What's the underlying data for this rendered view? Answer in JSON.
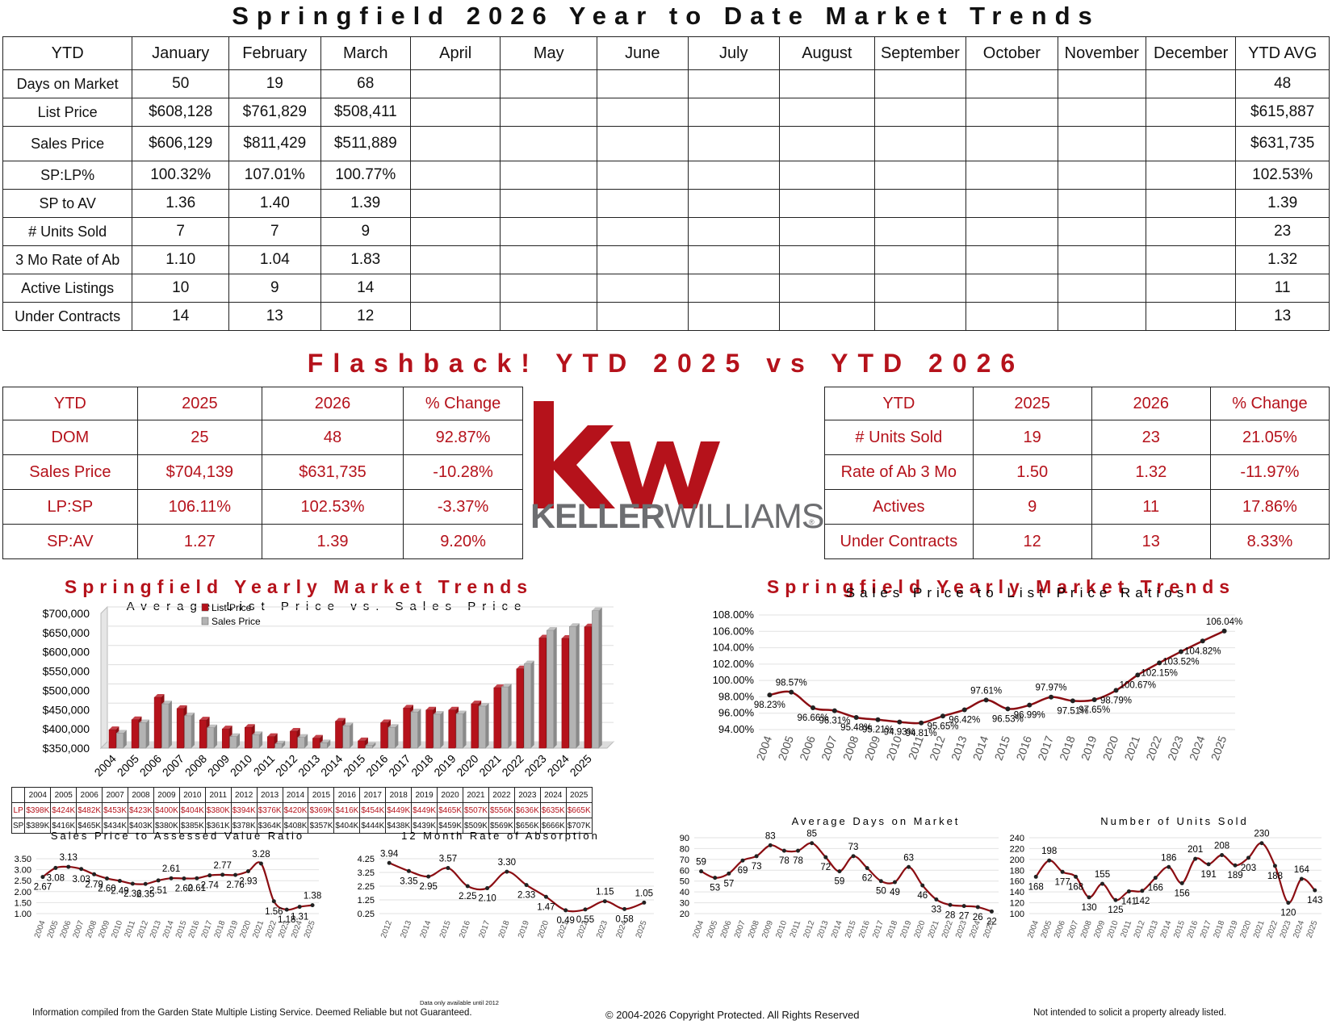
{
  "main_title": "Springfield 2026 Year to Date Market Trends",
  "ytd_table": {
    "headers": [
      "YTD",
      "January",
      "February",
      "March",
      "April",
      "May",
      "June",
      "July",
      "August",
      "September",
      "October",
      "November",
      "December",
      "YTD AVG"
    ],
    "rows": [
      {
        "label": "Days on Market",
        "values": [
          "50",
          "19",
          "68",
          "",
          "",
          "",
          "",
          "",
          "",
          "",
          "",
          ""
        ],
        "avg": "48"
      },
      {
        "label": "List Price",
        "values": [
          "$608,128",
          "$761,829",
          "$508,411",
          "",
          "",
          "",
          "",
          "",
          "",
          "",
          "",
          ""
        ],
        "avg": "$615,887"
      },
      {
        "label": "Sales Price",
        "values": [
          "$606,129",
          "$811,429",
          "$511,889",
          "",
          "",
          "",
          "",
          "",
          "",
          "",
          "",
          ""
        ],
        "avg": "$631,735"
      },
      {
        "label": "SP:LP%",
        "values": [
          "100.32%",
          "107.01%",
          "100.77%",
          "",
          "",
          "",
          "",
          "",
          "",
          "",
          "",
          ""
        ],
        "avg": "102.53%"
      },
      {
        "label": "SP to AV",
        "values": [
          "1.36",
          "1.40",
          "1.39",
          "",
          "",
          "",
          "",
          "",
          "",
          "",
          "",
          ""
        ],
        "avg": "1.39"
      },
      {
        "label": "# Units Sold",
        "values": [
          "7",
          "7",
          "9",
          "",
          "",
          "",
          "",
          "",
          "",
          "",
          "",
          ""
        ],
        "avg": "23"
      },
      {
        "label": "3 Mo Rate of Ab",
        "values": [
          "1.10",
          "1.04",
          "1.83",
          "",
          "",
          "",
          "",
          "",
          "",
          "",
          "",
          ""
        ],
        "avg": "1.32"
      },
      {
        "label": "Active Listings",
        "values": [
          "10",
          "9",
          "14",
          "",
          "",
          "",
          "",
          "",
          "",
          "",
          "",
          ""
        ],
        "avg": "11"
      },
      {
        "label": "Under Contracts",
        "values": [
          "14",
          "13",
          "12",
          "",
          "",
          "",
          "",
          "",
          "",
          "",
          "",
          ""
        ],
        "avg": "13"
      }
    ]
  },
  "flashback_title": "Flashback!   YTD 2025 vs YTD 2026",
  "compare_left": {
    "headers": [
      "YTD",
      "2025",
      "2026",
      "% Change"
    ],
    "rows": [
      [
        "DOM",
        "25",
        "48",
        "92.87%"
      ],
      [
        "Sales Price",
        "$704,139",
        "$631,735",
        "-10.28%"
      ],
      [
        "LP:SP",
        "106.11%",
        "102.53%",
        "-3.37%"
      ],
      [
        "SP:AV",
        "1.27",
        "1.39",
        "9.20%"
      ]
    ]
  },
  "compare_right": {
    "headers": [
      "YTD",
      "2025",
      "2026",
      "% Change"
    ],
    "rows": [
      [
        "# Units Sold",
        "19",
        "23",
        "21.05%"
      ],
      [
        "Rate of Ab 3 Mo",
        "1.50",
        "1.32",
        "-11.97%"
      ],
      [
        "Actives",
        "9",
        "11",
        "17.86%"
      ],
      [
        "Under Contracts",
        "12",
        "13",
        "8.33%"
      ]
    ]
  },
  "logo": {
    "mark": "kw",
    "wordmark_bold": "KELLER",
    "wordmark_light": "WILLIAMS",
    "registered": "®",
    "color": "#b5121b",
    "gray": "#6d6e71"
  },
  "yearly_title": "Springfield Yearly Market Trends",
  "lpsp_table": {
    "years": [
      "2004",
      "2005",
      "2006",
      "2007",
      "2008",
      "2009",
      "2010",
      "2011",
      "2012",
      "2013",
      "2014",
      "2015",
      "2016",
      "2017",
      "2018",
      "2019",
      "2020",
      "2021",
      "2022",
      "2023",
      "2024",
      "2025"
    ],
    "lp_label": "LP",
    "sp_label": "SP",
    "lp": [
      "$398K",
      "$424K",
      "$482K",
      "$453K",
      "$423K",
      "$400K",
      "$404K",
      "$380K",
      "$394K",
      "$376K",
      "$420K",
      "$369K",
      "$416K",
      "$454K",
      "$449K",
      "$449K",
      "$465K",
      "$507K",
      "$556K",
      "$636K",
      "$635K",
      "$665K"
    ],
    "sp": [
      "$389K",
      "$416K",
      "$465K",
      "$434K",
      "$403K",
      "$380K",
      "$385K",
      "$361K",
      "$378K",
      "$364K",
      "$408K",
      "$357K",
      "$404K",
      "$444K",
      "$438K",
      "$439K",
      "$459K",
      "$509K",
      "$569K",
      "$656K",
      "$666K",
      "$707K"
    ]
  },
  "footer": {
    "left": "Information compiled from the Garden State Multiple Listing Service.  Deemed Reliable but not Guaranteed.",
    "center": "© 2004-2026 Copyright Protected.  All Rights Reserved",
    "right": "Not intended to solicit a property already listed.",
    "note": "Data only available until 2012"
  },
  "colors": {
    "red": "#b5121b",
    "dark_red": "#8b0d12",
    "gray_bar": "#b3b3b3"
  },
  "chart_data": [
    {
      "type": "bar",
      "title": "Average List Price vs. Sales Price",
      "categories": [
        "2004",
        "2005",
        "2006",
        "2007",
        "2008",
        "2009",
        "2010",
        "2011",
        "2012",
        "2013",
        "2014",
        "2015",
        "2016",
        "2017",
        "2018",
        "2019",
        "2020",
        "2021",
        "2022",
        "2023",
        "2024",
        "2025"
      ],
      "series": [
        {
          "name": "List Price",
          "values": [
            398,
            424,
            482,
            453,
            423,
            400,
            404,
            380,
            394,
            376,
            420,
            369,
            416,
            454,
            449,
            449,
            465,
            507,
            556,
            636,
            635,
            665
          ]
        },
        {
          "name": "Sales Price",
          "values": [
            389,
            416,
            465,
            434,
            403,
            380,
            385,
            361,
            378,
            364,
            408,
            357,
            404,
            444,
            438,
            439,
            459,
            509,
            569,
            656,
            666,
            707
          ]
        }
      ],
      "yticks": [
        "$350,000",
        "$400,000",
        "$450,000",
        "$500,000",
        "$550,000",
        "$600,000",
        "$650,000",
        "$700,000"
      ],
      "ylim": [
        350,
        700
      ],
      "legend": "top-left"
    },
    {
      "type": "line",
      "title": "Sales Price to List Price Ratios",
      "categories": [
        "2004",
        "2005",
        "2006",
        "2007",
        "2008",
        "2009",
        "2010",
        "2011",
        "2012",
        "2013",
        "2014",
        "2015",
        "2016",
        "2017",
        "2018",
        "2019",
        "2020",
        "2021",
        "2022",
        "2023",
        "2024",
        "2025"
      ],
      "values": [
        98.23,
        98.57,
        96.66,
        96.31,
        95.48,
        95.21,
        94.93,
        94.81,
        95.65,
        96.42,
        97.61,
        96.53,
        96.99,
        97.97,
        97.51,
        97.65,
        98.79,
        100.67,
        102.15,
        103.52,
        104.82,
        106.04
      ],
      "labels": [
        "98.23%",
        "98.57%",
        "96.66%",
        "96.31%",
        "95.48%",
        "95.21%",
        "94.93%",
        "94.81%",
        "95.65%",
        "96.42%",
        "97.61%",
        "96.53%",
        "96.99%",
        "97.97%",
        "97.51%",
        "97.65%",
        "98.79%",
        "100.67%",
        "102.15%",
        "103.52%",
        "104.82%",
        "106.04%"
      ],
      "yticks": [
        "94.00%",
        "96.00%",
        "98.00%",
        "100.00%",
        "102.00%",
        "104.00%",
        "106.00%",
        "108.00%"
      ],
      "ylim": [
        94,
        108
      ]
    },
    {
      "type": "line",
      "title": "Sales Price to Assessed Value Ratio",
      "categories": [
        "2004",
        "2005",
        "2006",
        "2007",
        "2008",
        "2009",
        "2010",
        "2011",
        "2012",
        "2013",
        "2014",
        "2015",
        "2016",
        "2017",
        "2018",
        "2019",
        "2020",
        "2021",
        "2022",
        "2023",
        "2024",
        "2025"
      ],
      "values": [
        2.67,
        3.08,
        3.13,
        3.03,
        2.79,
        2.6,
        2.49,
        2.36,
        2.35,
        2.51,
        2.61,
        2.6,
        2.61,
        2.74,
        2.77,
        2.76,
        2.93,
        3.28,
        1.56,
        1.18,
        1.31,
        1.38
      ],
      "labels": [
        "2.67",
        "3.08",
        "3.13",
        "3.03",
        "2.79",
        "2.60",
        "2.49",
        "2.36",
        "2.35",
        "2.51",
        "2.61",
        "2.60",
        "2.61",
        "2.74",
        "2.77",
        "2.76",
        "2.93",
        "3.28",
        "1.56",
        "1.18",
        "1.31",
        "1.38"
      ],
      "yticks": [
        "1.00",
        "1.50",
        "2.00",
        "2.50",
        "3.00",
        "3.50"
      ],
      "ylim": [
        1,
        3.5
      ]
    },
    {
      "type": "line",
      "title": "12 Month Rate of Absorption",
      "categories": [
        "2012",
        "2013",
        "2014",
        "2015",
        "2016",
        "2017",
        "2018",
        "2019",
        "2020",
        "2021",
        "2022",
        "2023",
        "2024",
        "2025"
      ],
      "values": [
        3.94,
        3.35,
        2.95,
        3.57,
        2.25,
        2.1,
        3.3,
        2.33,
        1.47,
        0.49,
        0.55,
        1.15,
        0.58,
        1.05
      ],
      "labels": [
        "3.94",
        "3.35",
        "2.95",
        "3.57",
        "2.25",
        "2.10",
        "3.30",
        "2.33",
        "1.47",
        "0.49",
        "0.55",
        "1.15",
        "0.58",
        "1.05"
      ],
      "yticks": [
        "0.25",
        "1.25",
        "2.25",
        "3.25",
        "4.25"
      ],
      "ylim": [
        0.25,
        4.25
      ]
    },
    {
      "type": "line",
      "title": "Average Days on Market",
      "categories": [
        "2004",
        "2005",
        "2006",
        "2007",
        "2008",
        "2009",
        "2010",
        "2011",
        "2012",
        "2013",
        "2014",
        "2015",
        "2016",
        "2017",
        "2018",
        "2019",
        "2020",
        "2021",
        "2022",
        "2023",
        "2024",
        "2025"
      ],
      "values": [
        59,
        53,
        57,
        69,
        73,
        83,
        78,
        78,
        85,
        72,
        59,
        73,
        62,
        50,
        49,
        63,
        46,
        33,
        28,
        27,
        26,
        22
      ],
      "labels": [
        "59",
        "53",
        "57",
        "69",
        "73",
        "83",
        "78",
        "78",
        "85",
        "72",
        "59",
        "73",
        "62",
        "50",
        "49",
        "63",
        "46",
        "33",
        "28",
        "27",
        "26",
        "22"
      ],
      "yticks": [
        "20",
        "30",
        "40",
        "50",
        "60",
        "70",
        "80",
        "90"
      ],
      "ylim": [
        20,
        90
      ]
    },
    {
      "type": "line",
      "title": "Number of Units Sold",
      "categories": [
        "2004",
        "2005",
        "2006",
        "2007",
        "2008",
        "2009",
        "2010",
        "2011",
        "2012",
        "2013",
        "2014",
        "2015",
        "2016",
        "2017",
        "2018",
        "2019",
        "2020",
        "2021",
        "2022",
        "2023",
        "2024",
        "2025"
      ],
      "values": [
        168,
        198,
        177,
        168,
        130,
        155,
        125,
        141,
        142,
        166,
        186,
        156,
        201,
        191,
        208,
        189,
        203,
        230,
        188,
        120,
        164,
        143
      ],
      "labels": [
        "168",
        "198",
        "177",
        "168",
        "130",
        "155",
        "125",
        "141",
        "142",
        "166",
        "186",
        "156",
        "201",
        "191",
        "208",
        "189",
        "203",
        "230",
        "188",
        "120",
        "164",
        "143"
      ],
      "yticks": [
        "100",
        "120",
        "140",
        "160",
        "180",
        "200",
        "220",
        "240"
      ],
      "ylim": [
        100,
        240
      ]
    }
  ]
}
